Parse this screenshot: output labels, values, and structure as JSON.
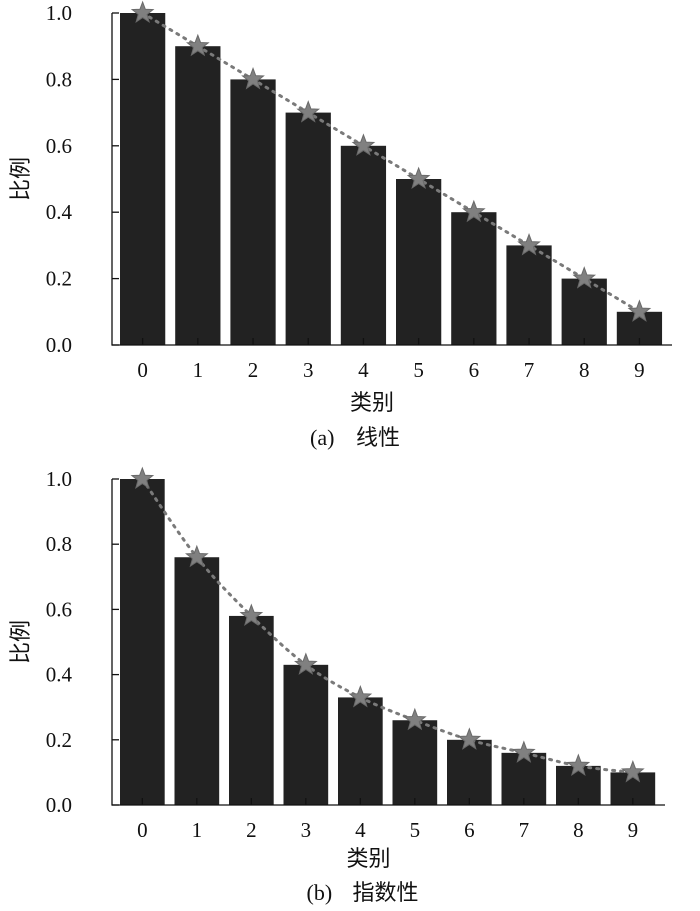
{
  "chart_data": [
    {
      "type": "bar",
      "caption_label": "(a)",
      "caption_title": "线性",
      "xlabel": "类别",
      "ylabel": "比例",
      "categories": [
        "0",
        "1",
        "2",
        "3",
        "4",
        "5",
        "6",
        "7",
        "8",
        "9"
      ],
      "values": [
        1.0,
        0.9,
        0.8,
        0.7,
        0.6,
        0.5,
        0.4,
        0.3,
        0.2,
        0.1
      ],
      "ylim": [
        0,
        1.0
      ],
      "yticks": [
        "0.0",
        "0.2",
        "0.4",
        "0.6",
        "0.8",
        "1.0"
      ],
      "grid": false,
      "marker": "star",
      "trend_line": "dotted",
      "colors": {
        "bar": "#222222",
        "marker": "#808080",
        "trend": "#7a7a7a"
      }
    },
    {
      "type": "bar",
      "caption_label": "(b)",
      "caption_title": "指数性",
      "xlabel": "类别",
      "ylabel": "比例",
      "categories": [
        "0",
        "1",
        "2",
        "3",
        "4",
        "5",
        "6",
        "7",
        "8",
        "9"
      ],
      "values": [
        1.0,
        0.76,
        0.58,
        0.43,
        0.33,
        0.26,
        0.2,
        0.16,
        0.12,
        0.1
      ],
      "ylim": [
        0,
        1.0
      ],
      "yticks": [
        "0.0",
        "0.2",
        "0.4",
        "0.6",
        "0.8",
        "1.0"
      ],
      "grid": false,
      "marker": "star",
      "trend_line": "dotted",
      "colors": {
        "bar": "#222222",
        "marker": "#808080",
        "trend": "#7a7a7a"
      }
    }
  ]
}
